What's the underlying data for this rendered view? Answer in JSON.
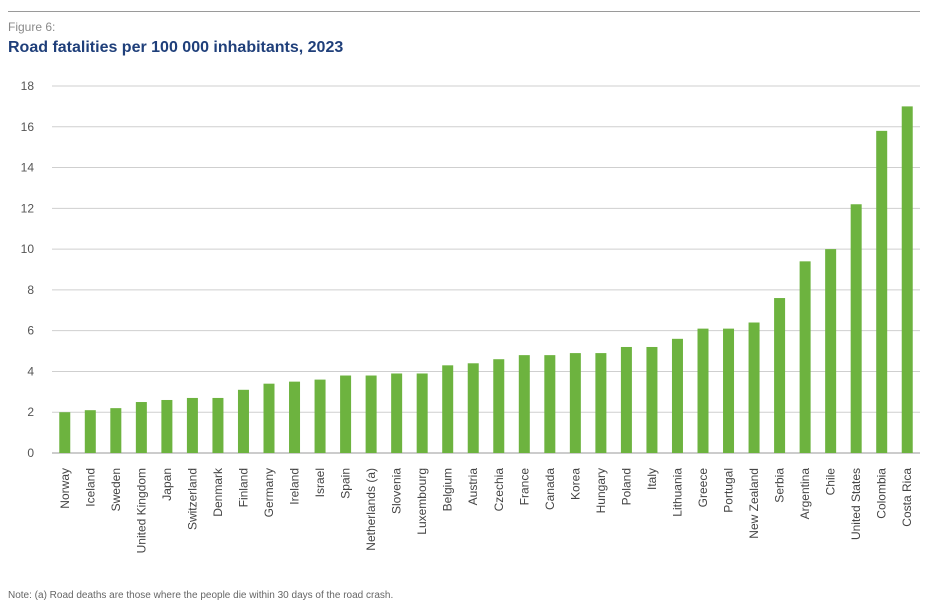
{
  "figure_label": "Figure 6:",
  "footnote": "Note: (a) Road deaths are those where the people die within 30 days of the road crash.",
  "chart_data": {
    "type": "bar",
    "title": "Road fatalities per 100 000 inhabitants, 2023",
    "xlabel": "",
    "ylabel": "",
    "ylim": [
      0,
      18
    ],
    "yticks": [
      "0",
      "2",
      "4",
      "6",
      "8",
      "10",
      "12",
      "14",
      "16",
      "18"
    ],
    "grid": true,
    "bar_color": "#6db33f",
    "categories": [
      "Norway",
      "Iceland",
      "Sweden",
      "United Kingdom",
      "Japan",
      "Switzerland",
      "Denmark",
      "Finland",
      "Germany",
      "Ireland",
      "Israel",
      "Spain",
      "Netherlands (a)",
      "Slovenia",
      "Luxembourg",
      "Belgium",
      "Austria",
      "Czechia",
      "France",
      "Canada",
      "Korea",
      "Hungary",
      "Poland",
      "Italy",
      "Lithuania",
      "Greece",
      "Portugal",
      "New Zealand",
      "Serbia",
      "Argentina",
      "Chile",
      "United States",
      "Colombia",
      "Costa Rica"
    ],
    "values": [
      2.0,
      2.1,
      2.2,
      2.5,
      2.6,
      2.7,
      2.7,
      3.1,
      3.4,
      3.5,
      3.6,
      3.8,
      3.8,
      3.9,
      3.9,
      4.3,
      4.4,
      4.6,
      4.8,
      4.8,
      4.9,
      4.9,
      5.2,
      5.2,
      5.6,
      6.1,
      6.1,
      6.4,
      7.6,
      9.4,
      10.0,
      12.2,
      15.8,
      17.0
    ]
  }
}
